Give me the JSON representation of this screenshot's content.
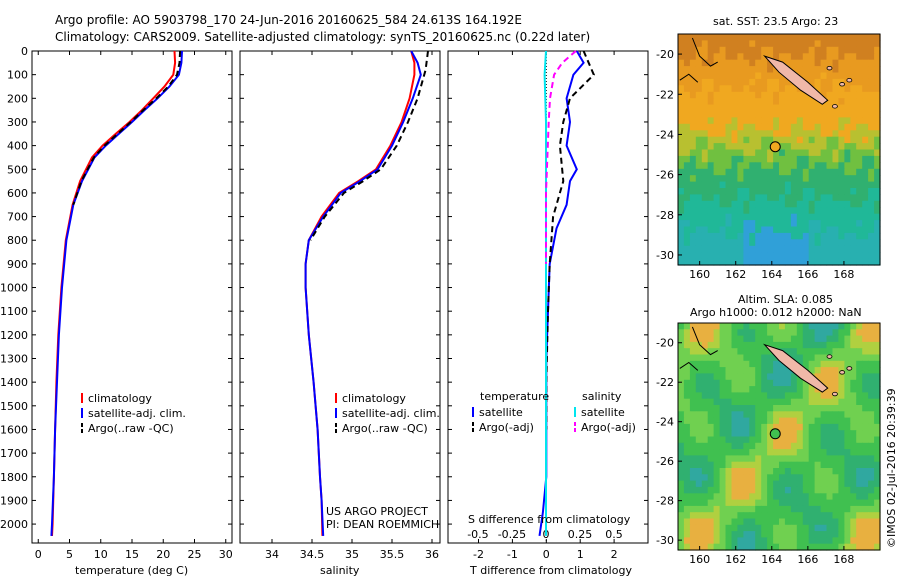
{
  "header": {
    "line1": "Argo profile: AO 5903798_170 24-Jun-2016 20160625_584 24.613S 164.192E",
    "line2": "Climatology: CARS2009. Satellite-adjusted climatology: synTS_20160625.nc (0.22d later)"
  },
  "chart_data": [
    {
      "type": "line",
      "xlabel": "temperature (deg C)",
      "ylabel": "",
      "xlim": [
        -1,
        31
      ],
      "ylim": [
        2080,
        0
      ],
      "xticks": [
        "0",
        "5",
        "10",
        "15",
        "20",
        "25",
        "30"
      ],
      "yticks": [
        "0",
        "100",
        "200",
        "300",
        "400",
        "500",
        "600",
        "700",
        "800",
        "900",
        "1000",
        "1100",
        "1200",
        "1300",
        "1400",
        "1500",
        "1600",
        "1700",
        "1800",
        "1900",
        "2000"
      ],
      "legend": [
        "climatology",
        "satellite-adj. clim.",
        "Argo(..raw -QC)"
      ],
      "series": [
        {
          "name": "climatology",
          "color": "#ff0000",
          "dash": "none",
          "x": [
            21.8,
            21.9,
            21.6,
            20.2,
            18.4,
            16.6,
            14.6,
            12.4,
            10.3,
            8.6,
            6.7,
            5.5,
            4.4,
            3.7,
            3.2,
            2.9,
            2.7,
            2.5,
            2.3,
            2.2
          ],
          "y": [
            0,
            50,
            100,
            150,
            200,
            250,
            300,
            350,
            400,
            450,
            550,
            650,
            800,
            1000,
            1200,
            1400,
            1600,
            1800,
            2000,
            2050
          ]
        },
        {
          "name": "satellite-adj. clim.",
          "color": "#0000ff",
          "dash": "none",
          "x": [
            23.0,
            22.9,
            22.5,
            21.0,
            19.1,
            17.0,
            15.0,
            12.9,
            10.8,
            9.0,
            7.0,
            5.6,
            4.5,
            3.8,
            3.3,
            3.0,
            2.7,
            2.5,
            2.2,
            2.1
          ],
          "y": [
            0,
            50,
            100,
            150,
            200,
            250,
            300,
            350,
            400,
            450,
            550,
            650,
            800,
            1000,
            1200,
            1400,
            1600,
            1800,
            2000,
            2050
          ]
        },
        {
          "name": "Argo(..raw -QC)",
          "color": "#000000",
          "dash": "6,4",
          "x": [
            22.7,
            22.6,
            22.2,
            20.8,
            18.9,
            16.8,
            14.8,
            12.7,
            10.6,
            8.9,
            6.9,
            5.6
          ],
          "y": [
            0,
            50,
            100,
            150,
            200,
            250,
            300,
            350,
            400,
            450,
            550,
            650
          ]
        }
      ]
    },
    {
      "type": "line",
      "xlabel": "salinity",
      "ylabel": "",
      "xlim": [
        33.6,
        36.1
      ],
      "ylim": [
        2080,
        0
      ],
      "xticks": [
        "34",
        "34.5",
        "35",
        "35.5",
        "36"
      ],
      "legend": [
        "climatology",
        "satellite-adj. clim.",
        "Argo(..raw -QC)"
      ],
      "annotations": [
        "US ARGO PROJECT",
        "PI: DEAN ROEMMICH"
      ],
      "series": [
        {
          "name": "climatology",
          "color": "#ff0000",
          "dash": "none",
          "x": [
            35.74,
            35.78,
            35.78,
            35.72,
            35.62,
            35.48,
            35.3,
            35.08,
            34.84,
            34.62,
            34.46,
            34.42,
            34.42,
            34.46,
            34.52,
            34.57,
            34.6,
            34.62,
            34.63
          ],
          "y": [
            0,
            50,
            100,
            200,
            300,
            400,
            500,
            550,
            600,
            700,
            800,
            900,
            1000,
            1200,
            1400,
            1600,
            1800,
            1900,
            2050
          ]
        },
        {
          "name": "satellite-adj. clim.",
          "color": "#0000ff",
          "dash": "none",
          "x": [
            35.74,
            35.82,
            35.86,
            35.76,
            35.64,
            35.5,
            35.32,
            35.1,
            34.86,
            34.64,
            34.46,
            34.42,
            34.42,
            34.46,
            34.52,
            34.57,
            34.6,
            34.62,
            34.64
          ],
          "y": [
            0,
            50,
            100,
            200,
            300,
            400,
            500,
            550,
            600,
            700,
            800,
            900,
            1000,
            1200,
            1400,
            1600,
            1800,
            1900,
            2050
          ]
        },
        {
          "name": "Argo(..raw -QC)",
          "color": "#000000",
          "dash": "6,4",
          "x": [
            35.95,
            35.92,
            35.82,
            35.7,
            35.56,
            35.36,
            35.14,
            34.9,
            34.66,
            34.48
          ],
          "y": [
            0,
            80,
            200,
            300,
            400,
            500,
            550,
            600,
            700,
            800
          ]
        }
      ]
    },
    {
      "type": "line",
      "xlabel": "T difference from climatology",
      "x2label": "S difference from climatology",
      "xlim": [
        -2.9,
        3.0
      ],
      "x2lim": [
        -0.72,
        0.75
      ],
      "ylim": [
        2080,
        0
      ],
      "xticks": [
        "-2",
        "-1",
        "0",
        "1",
        "2"
      ],
      "x2ticks": [
        "-0.5",
        "-0.25",
        "0",
        "0.25",
        "0.5"
      ],
      "legend_titles": [
        "temperature",
        "salinity"
      ],
      "legend": [
        "satellite",
        "Argo(-adj)",
        "satellite",
        "Argo(-adj)"
      ],
      "series": [
        {
          "name": "satellite",
          "axis": "T",
          "color": "#0000ff",
          "dash": "none",
          "x": [
            0.9,
            1.1,
            0.8,
            0.6,
            0.7,
            0.6,
            0.9,
            0.7,
            0.6,
            0.3,
            0.1,
            0.05,
            0.0,
            0.0,
            0.0,
            -0.1,
            -0.2
          ],
          "y": [
            0,
            50,
            100,
            200,
            300,
            400,
            500,
            550,
            650,
            750,
            900,
            1100,
            1300,
            1600,
            1800,
            1950,
            2050
          ]
        },
        {
          "name": "Argo(-adj)",
          "axis": "T",
          "color": "#000000",
          "dash": "6,4",
          "x": [
            1.1,
            1.4,
            0.7,
            0.5,
            0.4,
            0.5,
            0.2,
            0.1,
            0.05,
            0.0,
            0.0
          ],
          "y": [
            0,
            100,
            200,
            300,
            400,
            550,
            700,
            900,
            1100,
            1400,
            1600
          ]
        },
        {
          "name": "satellite",
          "axis": "S",
          "color": "#00e5ee",
          "dash": "none",
          "x": [
            0.0,
            -0.01,
            0.0,
            0.0,
            0.0,
            0.0,
            0.0,
            0.0,
            0.0
          ],
          "y": [
            0,
            100,
            300,
            500,
            700,
            1000,
            1300,
            1600,
            2050
          ]
        },
        {
          "name": "Argo(-adj)",
          "axis": "S",
          "color": "#ff00ff",
          "dash": "6,4",
          "x": [
            0.22,
            0.12,
            0.06,
            0.03,
            0.02,
            0.0,
            0.0
          ],
          "y": [
            0,
            50,
            100,
            200,
            300,
            600,
            900
          ]
        }
      ]
    }
  ],
  "maps": {
    "top_title": "sat. SST: 23.5 Argo: 23",
    "bottom_title_1": "Altim. SLA: 0.085",
    "bottom_title_2": "Argo h1000: 0.012 h2000: NaN",
    "xticks": [
      "160",
      "162",
      "164",
      "166",
      "168"
    ],
    "yticks": [
      "-20",
      "-22",
      "-24",
      "-26",
      "-28",
      "-30"
    ],
    "credit": "©IMOS 02-Jul-2016 20:39:39"
  }
}
